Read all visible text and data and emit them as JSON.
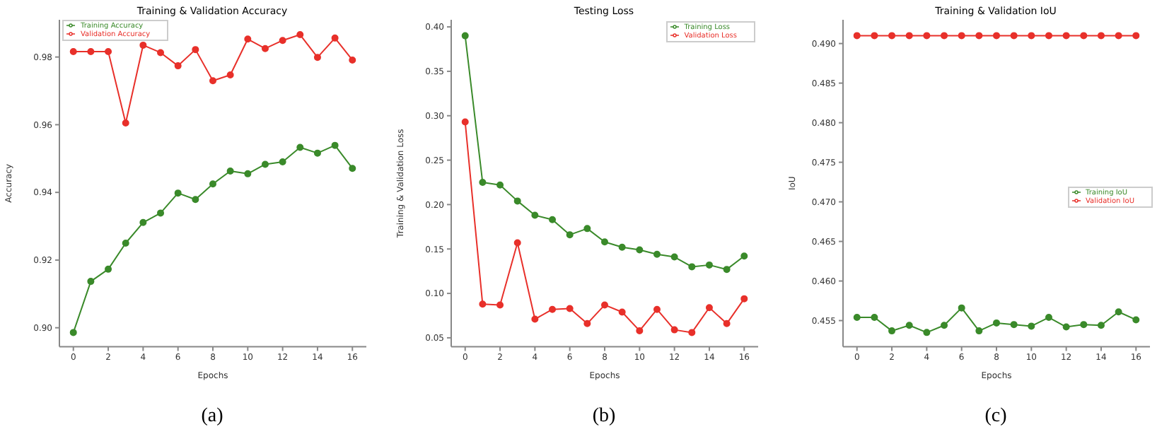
{
  "chart_data": [
    {
      "type": "line",
      "title": "Training & Validation Accuracy",
      "xlabel": "Epochs",
      "ylabel": "Accuracy",
      "x": [
        0,
        1,
        2,
        3,
        4,
        5,
        6,
        7,
        8,
        9,
        10,
        11,
        12,
        13,
        14,
        15,
        16
      ],
      "xlim": [
        -0.8,
        16.8
      ],
      "xticks": [
        0,
        2,
        4,
        6,
        8,
        10,
        12,
        14,
        16
      ],
      "ylim": [
        0.8944,
        0.991
      ],
      "yticks": [
        {
          "value": 0.9,
          "label": "0.90"
        },
        {
          "value": 0.92,
          "label": "0.92"
        },
        {
          "value": 0.94,
          "label": "0.94"
        },
        {
          "value": 0.96,
          "label": "0.96"
        },
        {
          "value": 0.98,
          "label": "0.98"
        }
      ],
      "marker": "circle",
      "grid": false,
      "legend": "top left",
      "annotations": [
        "(a)"
      ],
      "series": [
        {
          "name": "Training Accuracy",
          "color": "#3a8a2a",
          "values": [
            0.8986,
            0.9137,
            0.9173,
            0.925,
            0.9311,
            0.9339,
            0.9398,
            0.9379,
            0.9425,
            0.9463,
            0.9455,
            0.9483,
            0.949,
            0.9533,
            0.9516,
            0.9539,
            0.9471
          ]
        },
        {
          "name": "Validation Accuracy",
          "color": "#e8302a",
          "values": [
            0.9816,
            0.9816,
            0.9816,
            0.9605,
            0.9835,
            0.9813,
            0.9774,
            0.9822,
            0.973,
            0.9747,
            0.9853,
            0.9825,
            0.9849,
            0.9866,
            0.9799,
            0.9856,
            0.9791
          ]
        }
      ]
    },
    {
      "type": "line",
      "title": "Testing Loss",
      "xlabel": "Epochs",
      "ylabel": "Training & Validation Loss",
      "x": [
        0,
        1,
        2,
        3,
        4,
        5,
        6,
        7,
        8,
        9,
        10,
        11,
        12,
        13,
        14,
        15,
        16
      ],
      "xlim": [
        -0.8,
        16.8
      ],
      "xticks": [
        0,
        2,
        4,
        6,
        8,
        10,
        12,
        14,
        16
      ],
      "ylim": [
        0.04,
        0.408
      ],
      "yticks": [
        {
          "value": 0.05,
          "label": "0.05"
        },
        {
          "value": 0.1,
          "label": "0.10"
        },
        {
          "value": 0.15,
          "label": "0.15"
        },
        {
          "value": 0.2,
          "label": "0.20"
        },
        {
          "value": 0.25,
          "label": "0.25"
        },
        {
          "value": 0.3,
          "label": "0.30"
        },
        {
          "value": 0.35,
          "label": "0.35"
        },
        {
          "value": 0.4,
          "label": "0.40"
        }
      ],
      "marker": "circle",
      "grid": false,
      "legend": "top right",
      "annotations": [
        "(b)"
      ],
      "series": [
        {
          "name": "Training Loss",
          "color": "#3a8a2a",
          "values": [
            0.39,
            0.225,
            0.222,
            0.204,
            0.188,
            0.183,
            0.166,
            0.173,
            0.158,
            0.152,
            0.149,
            0.144,
            0.141,
            0.13,
            0.132,
            0.127,
            0.142
          ]
        },
        {
          "name": "Validation Loss",
          "color": "#e8302a",
          "values": [
            0.293,
            0.088,
            0.087,
            0.157,
            0.071,
            0.082,
            0.083,
            0.066,
            0.087,
            0.079,
            0.058,
            0.082,
            0.059,
            0.056,
            0.084,
            0.066,
            0.094
          ]
        }
      ]
    },
    {
      "type": "line",
      "title": "Training & Validation IoU",
      "xlabel": "Epochs",
      "ylabel": "IoU",
      "x": [
        0,
        1,
        2,
        3,
        4,
        5,
        6,
        7,
        8,
        9,
        10,
        11,
        12,
        13,
        14,
        15,
        16
      ],
      "xlim": [
        -0.8,
        16.8
      ],
      "xticks": [
        0,
        2,
        4,
        6,
        8,
        10,
        12,
        14,
        16
      ],
      "ylim": [
        0.4517,
        0.493
      ],
      "yticks": [
        {
          "value": 0.455,
          "label": "0.455"
        },
        {
          "value": 0.46,
          "label": "0.460"
        },
        {
          "value": 0.465,
          "label": "0.465"
        },
        {
          "value": 0.47,
          "label": "0.470"
        },
        {
          "value": 0.475,
          "label": "0.475"
        },
        {
          "value": 0.48,
          "label": "0.480"
        },
        {
          "value": 0.485,
          "label": "0.485"
        },
        {
          "value": 0.49,
          "label": "0.490"
        }
      ],
      "marker": "circle",
      "grid": false,
      "legend": "right",
      "annotations": [
        "(c)"
      ],
      "series": [
        {
          "name": "Training IoU",
          "color": "#3a8a2a",
          "values": [
            0.4554,
            0.4554,
            0.4537,
            0.4544,
            0.4535,
            0.4544,
            0.4566,
            0.4537,
            0.4547,
            0.4545,
            0.4543,
            0.4554,
            0.4542,
            0.4545,
            0.4544,
            0.4561,
            0.4551
          ]
        },
        {
          "name": "Validation IoU",
          "color": "#e8302a",
          "values": [
            0.491,
            0.491,
            0.491,
            0.491,
            0.491,
            0.491,
            0.491,
            0.491,
            0.491,
            0.491,
            0.491,
            0.491,
            0.491,
            0.491,
            0.491,
            0.491,
            0.491
          ]
        }
      ]
    }
  ]
}
